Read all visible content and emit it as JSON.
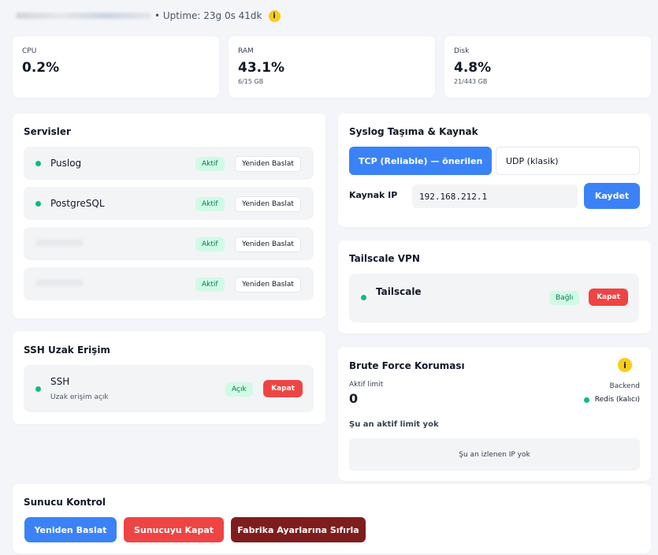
{
  "header": {
    "uptime_text": "• Uptime: 23g 0s 41dk",
    "info_icon": "i"
  },
  "stats": {
    "cpu": {
      "label": "CPU",
      "value": "0.2%"
    },
    "ram": {
      "label": "RAM",
      "value": "43.1%",
      "sub": "6/15 GB"
    },
    "disk": {
      "label": "Disk",
      "value": "4.8%",
      "sub": "21/443 GB"
    }
  },
  "services": {
    "title": "Servisler",
    "items": [
      {
        "name": "Puslog",
        "status": "Aktif",
        "restart": "Yeniden Baslat"
      },
      {
        "name": "PostgreSQL",
        "status": "Aktif",
        "restart": "Yeniden Baslat"
      },
      {
        "name": "",
        "status": "Aktif",
        "restart": "Yeniden Baslat"
      },
      {
        "name": "",
        "status": "Aktif",
        "restart": "Yeniden Baslat"
      }
    ]
  },
  "ssh": {
    "title": "SSH Uzak Erişim",
    "name": "SSH",
    "desc": "Uzak erişim açık",
    "status": "Açık",
    "action": "Kapat"
  },
  "syslog": {
    "title": "Syslog Taşıma & Kaynak",
    "tcp_label": "TCP (Reliable) — önerilen",
    "udp_label": "UDP (klasik)",
    "ip_label": "Kaynak IP",
    "ip_value": "192.168.212.1",
    "save": "Kaydet"
  },
  "tailscale": {
    "title": "Tailscale VPN",
    "name": "Tailscale",
    "status": "Bağlı",
    "action": "Kapat"
  },
  "bruteforce": {
    "title": "Brute Force Koruması",
    "info_icon": "i",
    "limit_label": "Aktif limit",
    "limit_value": "0",
    "backend_label": "Backend",
    "backend_value": "Redis (kalıcı)",
    "no_limit": "Şu an aktif limit yok",
    "no_ip": "Şu an izlenen IP yok"
  },
  "server_control": {
    "title": "Sunucu Kontrol",
    "restart": "Yeniden Baslat",
    "shutdown": "Sunucuyu Kapat",
    "factory_reset": "Fabrika Ayarlarına Sıfırla"
  },
  "colors": {
    "accent": "#3b82f6",
    "danger": "#ef4444",
    "danger_dark": "#7f1d1d",
    "success": "#10b981",
    "warning": "#facc15"
  }
}
